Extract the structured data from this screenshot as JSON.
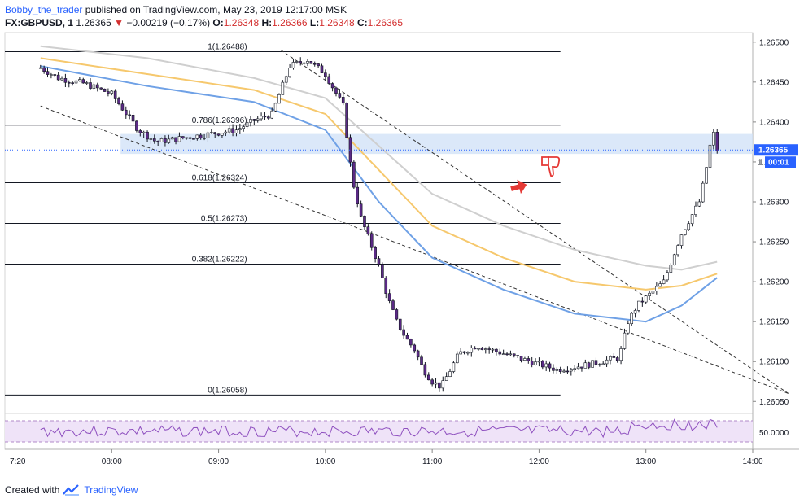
{
  "header": {
    "author": "Bobby_the_trader",
    "published": "published on TradingView.com, May 23, 2019 12:17:00 MSK",
    "symbol": "FX:GBPUSD, 1",
    "last": "1.26365",
    "change": "−0.00219 (−0.17%)",
    "o_label": "O:",
    "o_value": "1.26348",
    "h_label": "H:",
    "h_value": "1.26366",
    "l_label": "L:",
    "l_value": "1.26348",
    "c_label": "C:",
    "c_value": "1.26365"
  },
  "price_axis": {
    "ticks": [
      "1.26500",
      "1.26450",
      "1.26400",
      "1.26350",
      "1.26300",
      "1.26250",
      "1.26200",
      "1.26150",
      "1.26100",
      "1.26050"
    ],
    "current_price": "1.26365",
    "countdown": "00:01",
    "partial_label": "1"
  },
  "rsi_axis": {
    "label": "50.0000"
  },
  "time_axis": {
    "ticks": [
      "7:20",
      "08:00",
      "09:00",
      "10:00",
      "11:00",
      "12:00",
      "13:00",
      "14:00"
    ]
  },
  "fib_levels": [
    {
      "label": "1(1.26488)",
      "value": 1.26488
    },
    {
      "label": "0.786(1.26396)",
      "value": 1.26396
    },
    {
      "label": "0.618(1.26324)",
      "value": 1.26324
    },
    {
      "label": "0.5(1.26273)",
      "value": 1.26273
    },
    {
      "label": "0.382(1.26222)",
      "value": 1.26222
    },
    {
      "label": "0(1.26058)",
      "value": 1.26058
    }
  ],
  "chart_data": {
    "type": "candlestick",
    "symbol": "GBPUSD",
    "timeframe": "1",
    "time_range": [
      "07:20",
      "14:00"
    ],
    "ylim": [
      1.26035,
      1.26512
    ],
    "close_series": [
      [
        0,
        1.26468
      ],
      [
        10,
        1.26455
      ],
      [
        25,
        1.26448
      ],
      [
        40,
        1.26435
      ],
      [
        55,
        1.2639
      ],
      [
        65,
        1.26375
      ],
      [
        80,
        1.2638
      ],
      [
        95,
        1.26385
      ],
      [
        110,
        1.2639
      ],
      [
        120,
        1.26402
      ],
      [
        130,
        1.2641
      ],
      [
        140,
        1.2647
      ],
      [
        150,
        1.26478
      ],
      [
        160,
        1.2646
      ],
      [
        170,
        1.2642
      ],
      [
        175,
        1.2633
      ],
      [
        180,
        1.2628
      ],
      [
        185,
        1.2625
      ],
      [
        190,
        1.2622
      ],
      [
        195,
        1.2618
      ],
      [
        200,
        1.2615
      ],
      [
        205,
        1.2613
      ],
      [
        210,
        1.26115
      ],
      [
        215,
        1.2609
      ],
      [
        220,
        1.26075
      ],
      [
        225,
        1.26068
      ],
      [
        235,
        1.2611
      ],
      [
        245,
        1.2612
      ],
      [
        260,
        1.2611
      ],
      [
        275,
        1.261
      ],
      [
        290,
        1.2609
      ],
      [
        305,
        1.26095
      ],
      [
        315,
        1.261
      ],
      [
        325,
        1.26105
      ],
      [
        330,
        1.2615
      ],
      [
        335,
        1.2617
      ],
      [
        340,
        1.2618
      ],
      [
        345,
        1.2619
      ],
      [
        350,
        1.262
      ],
      [
        355,
        1.2623
      ],
      [
        360,
        1.2626
      ],
      [
        365,
        1.2628
      ],
      [
        370,
        1.263
      ],
      [
        373,
        1.2633
      ],
      [
        376,
        1.2637
      ],
      [
        378,
        1.26385
      ],
      [
        380,
        1.26365
      ]
    ],
    "ema_series": [
      {
        "name": "",
        "color": "#f6c86d",
        "points": [
          [
            0,
            1.2648
          ],
          [
            60,
            1.2646
          ],
          [
            120,
            1.2644
          ],
          [
            160,
            1.2641
          ],
          [
            190,
            1.2634
          ],
          [
            220,
            1.2627
          ],
          [
            260,
            1.2623
          ],
          [
            300,
            1.262
          ],
          [
            340,
            1.2619
          ],
          [
            360,
            1.26195
          ],
          [
            380,
            1.2621
          ]
        ]
      },
      {
        "name": "",
        "color": "#6fa1e6",
        "points": [
          [
            0,
            1.2647
          ],
          [
            60,
            1.26445
          ],
          [
            120,
            1.26425
          ],
          [
            160,
            1.2639
          ],
          [
            190,
            1.263
          ],
          [
            220,
            1.2623
          ],
          [
            260,
            1.2619
          ],
          [
            300,
            1.2616
          ],
          [
            340,
            1.2615
          ],
          [
            360,
            1.2617
          ],
          [
            380,
            1.26205
          ]
        ]
      },
      {
        "name": "",
        "color": "#cfcfcf",
        "points": [
          [
            0,
            1.26495
          ],
          [
            60,
            1.2648
          ],
          [
            120,
            1.26455
          ],
          [
            160,
            1.2643
          ],
          [
            190,
            1.2637
          ],
          [
            220,
            1.2631
          ],
          [
            260,
            1.2627
          ],
          [
            300,
            1.2624
          ],
          [
            340,
            1.2622
          ],
          [
            360,
            1.26215
          ],
          [
            380,
            1.26225
          ]
        ]
      }
    ],
    "trendlines": [
      {
        "from": [
          135,
          1.2649
        ],
        "to": [
          420,
          1.2606
        ],
        "style": "dashed"
      },
      {
        "from": [
          0,
          1.2642
        ],
        "to": [
          420,
          1.2606
        ],
        "style": "dashed"
      }
    ],
    "zone": {
      "from_time": 45,
      "to_time": 400,
      "top": 1.26385,
      "bottom": 1.2636
    },
    "rsi_level": 50,
    "annotations": [
      "red-arrow",
      "thumbs-down-icon"
    ]
  }
}
